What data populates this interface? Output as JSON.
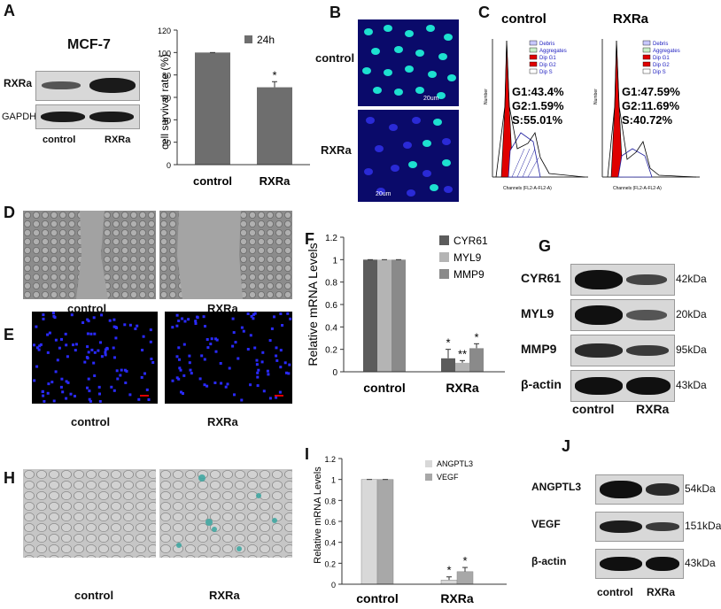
{
  "panels": {
    "A": {
      "letter": "A",
      "cell_line": "MCF-7",
      "blot_labels": [
        "RXRa",
        "GAPDH"
      ],
      "lanes": [
        "control",
        "RXRa"
      ],
      "chart_data": {
        "type": "bar",
        "categories": [
          "control",
          "RXRa"
        ],
        "series": [
          {
            "name": "24h",
            "values": [
              100,
              69
            ],
            "errors": [
              0,
              5
            ]
          }
        ],
        "ylabel": "cell survival rate (%)",
        "ylim": [
          0,
          120
        ],
        "yticks": [
          0,
          20,
          40,
          60,
          80,
          100,
          120
        ],
        "significance": [
          "",
          "*"
        ],
        "legend_position": "top-right"
      }
    },
    "B": {
      "letter": "B",
      "rows": [
        "control",
        "RXRa"
      ],
      "scale": "20um"
    },
    "C": {
      "letter": "C",
      "conditions": [
        {
          "title": "control",
          "g1": "G1:43.4%",
          "g2": "G2:1.59%",
          "s": "S:55.01%"
        },
        {
          "title": "RXRa",
          "g1": "G1:47.59%",
          "g2": "G2:11.69%",
          "s": "S:40.72%"
        }
      ],
      "legend": [
        "Debris",
        "Aggregates",
        "Dip G1",
        "Dip G2",
        "Dip S"
      ],
      "ylabel": "Number",
      "xlabel": "Channels (FL2-A-FL2-A)"
    },
    "D": {
      "letter": "D",
      "labels": [
        "control",
        "RXRa"
      ]
    },
    "E": {
      "letter": "E",
      "labels": [
        "control",
        "RXRa"
      ]
    },
    "F": {
      "letter": "F",
      "chart_data": {
        "type": "bar",
        "categories": [
          "control",
          "RXRa"
        ],
        "series": [
          {
            "name": "CYR61",
            "values": [
              1,
              0.12
            ],
            "errors": [
              0,
              0.08
            ]
          },
          {
            "name": "MYL9",
            "values": [
              1,
              0.08
            ],
            "errors": [
              0,
              0.02
            ]
          },
          {
            "name": "MMP9",
            "values": [
              1,
              0.21
            ],
            "errors": [
              0,
              0.04
            ]
          }
        ],
        "ylabel": "Relative mRNA Levels",
        "ylim": [
          0,
          1.2
        ],
        "yticks": [
          "0",
          "0.2",
          "0.4",
          "0.6",
          "0.8",
          "1",
          "1.2"
        ],
        "significance": [
          [
            "",
            "*"
          ],
          [
            "",
            "**"
          ],
          [
            "",
            "*"
          ]
        ],
        "legend_position": "top-right"
      }
    },
    "G": {
      "letter": "G",
      "proteins": [
        {
          "name": "CYR61",
          "size": "42kDa"
        },
        {
          "name": "MYL9",
          "size": "20kDa"
        },
        {
          "name": "MMP9",
          "size": "95kDa"
        },
        {
          "name": "β-actin",
          "size": "43kDa"
        }
      ],
      "lanes": [
        "control",
        "RXRa"
      ]
    },
    "H": {
      "letter": "H",
      "labels": [
        "control",
        "RXRa"
      ]
    },
    "I": {
      "letter": "I",
      "chart_data": {
        "type": "bar",
        "categories": [
          "control",
          "RXRa"
        ],
        "series": [
          {
            "name": "ANGPTL3",
            "values": [
              1,
              0.04
            ],
            "errors": [
              0,
              0.03
            ]
          },
          {
            "name": "VEGF",
            "values": [
              1,
              0.12
            ],
            "errors": [
              0,
              0.04
            ]
          }
        ],
        "ylabel": "Relative mRNA Levels",
        "ylim": [
          0,
          1.2
        ],
        "yticks": [
          "0",
          "0.2",
          "0.4",
          "0.6",
          "0.8",
          "1",
          "1.2"
        ],
        "significance": [
          [
            "",
            "*"
          ],
          [
            "",
            "*"
          ]
        ],
        "legend_position": "top-right"
      }
    },
    "J": {
      "letter": "J",
      "proteins": [
        {
          "name": "ANGPTL3",
          "size": "54kDa"
        },
        {
          "name": "VEGF",
          "size": "151kDa"
        },
        {
          "name": "β-actin",
          "size": "43kDa"
        }
      ],
      "lanes": [
        "control",
        "RXRa"
      ]
    }
  }
}
